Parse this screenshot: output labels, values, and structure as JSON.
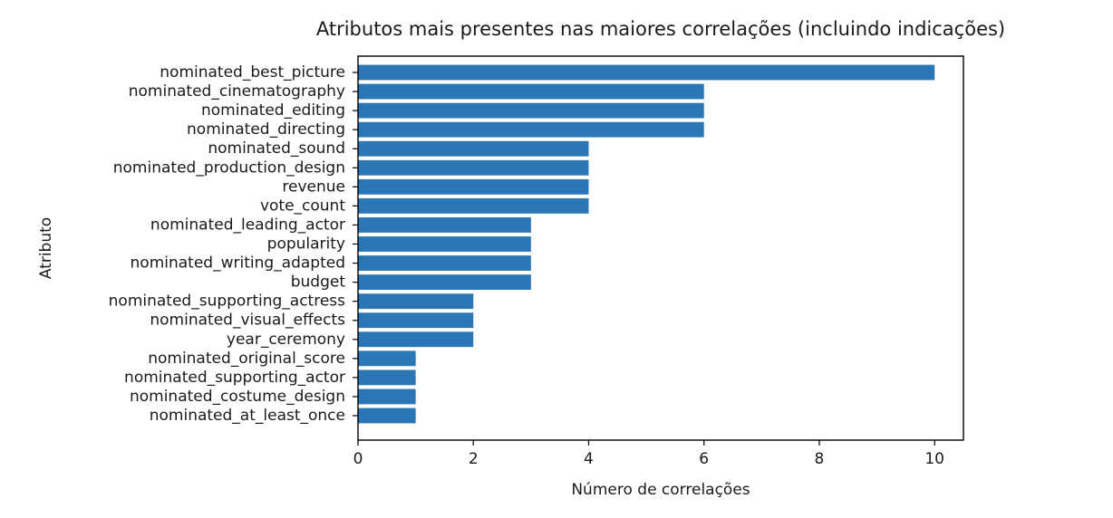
{
  "chart_data": {
    "type": "bar",
    "orientation": "horizontal",
    "title": "Atributos mais presentes nas maiores correlações (incluindo indicações)",
    "xlabel": "Número de correlações",
    "ylabel": "Atributo",
    "xlim": [
      0,
      10.5
    ],
    "xticks": [
      "0",
      "2",
      "4",
      "6",
      "8",
      "10"
    ],
    "bar_color": "#2b76b4",
    "grid": false,
    "categories": [
      "nominated_best_picture",
      "nominated_cinematography",
      "nominated_editing",
      "nominated_directing",
      "nominated_sound",
      "nominated_production_design",
      "revenue",
      "vote_count",
      "nominated_leading_actor",
      "popularity",
      "nominated_writing_adapted",
      "budget",
      "nominated_supporting_actress",
      "nominated_visual_effects",
      "year_ceremony",
      "nominated_original_score",
      "nominated_supporting_actor",
      "nominated_costume_design",
      "nominated_at_least_once"
    ],
    "values": [
      10,
      6,
      6,
      6,
      4,
      4,
      4,
      4,
      3,
      3,
      3,
      3,
      2,
      2,
      2,
      1,
      1,
      1,
      1
    ]
  }
}
